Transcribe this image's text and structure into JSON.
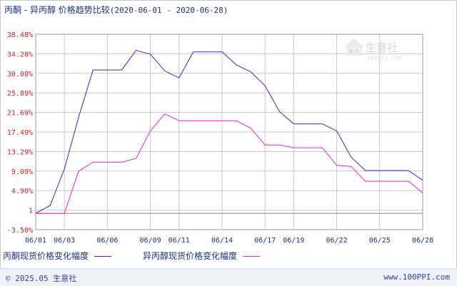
{
  "title": {
    "main": "丙酮 - 异丙醇 价格趋势比较",
    "range": "(2020-06-01 - 2020-06-28)"
  },
  "watermark": {
    "text": "生意社",
    "sub": "100PPI.COM"
  },
  "footer": {
    "copyright": "© 2025.05 生意社",
    "site": "www.100PPI.com"
  },
  "colors": {
    "series1": "#2b2bd0",
    "series2": "#e61ee6",
    "axis_labels": "#cc2222",
    "grid": "#c8c8c8"
  },
  "chart_data": {
    "type": "line",
    "title": "丙酮 - 异丙醇 价格趋势比较(2020-06-01 - 2020-06-28)",
    "x_tick_labels": [
      "06/01",
      "06/03",
      "06/06",
      "06/09",
      "06/11",
      "06/14",
      "06/17",
      "06/19",
      "06/22",
      "06/25",
      "06/28"
    ],
    "y_tick_labels": [
      "38.48%",
      "34.28%",
      "30.08%",
      "25.89%",
      "21.69%",
      "17.49%",
      "13.29%",
      "9.09%",
      "4.90%",
      "1",
      "-3.50%"
    ],
    "ylim": [
      -3.5,
      38.48
    ],
    "grid": true,
    "legend_position": "bottom",
    "x": [
      "06/01",
      "06/02",
      "06/03",
      "06/04",
      "06/05",
      "06/06",
      "06/07",
      "06/08",
      "06/09",
      "06/10",
      "06/11",
      "06/12",
      "06/13",
      "06/14",
      "06/15",
      "06/16",
      "06/17",
      "06/18",
      "06/19",
      "06/20",
      "06/21",
      "06/22",
      "06/23",
      "06/24",
      "06/25",
      "06/26",
      "06/27",
      "06/28"
    ],
    "series": [
      {
        "name": "丙酮现货价格变化幅度",
        "values": [
          0,
          1.7,
          9.5,
          20.7,
          30.8,
          30.8,
          30.8,
          35.0,
          34.2,
          30.6,
          29.1,
          34.7,
          34.7,
          34.7,
          31.9,
          30.4,
          27.4,
          21.9,
          19.2,
          19.2,
          19.2,
          17.7,
          12.1,
          9.2,
          9.2,
          9.2,
          9.2,
          7.1
        ]
      },
      {
        "name": "异丙醇现货价格变化幅度",
        "values": [
          0,
          0,
          0,
          9.1,
          11.0,
          11.0,
          11.0,
          11.8,
          17.7,
          21.4,
          19.9,
          19.9,
          19.9,
          19.9,
          19.9,
          18.3,
          14.7,
          14.7,
          14.1,
          14.1,
          14.1,
          10.3,
          10.1,
          6.9,
          6.9,
          6.9,
          6.9,
          4.4
        ]
      }
    ]
  }
}
